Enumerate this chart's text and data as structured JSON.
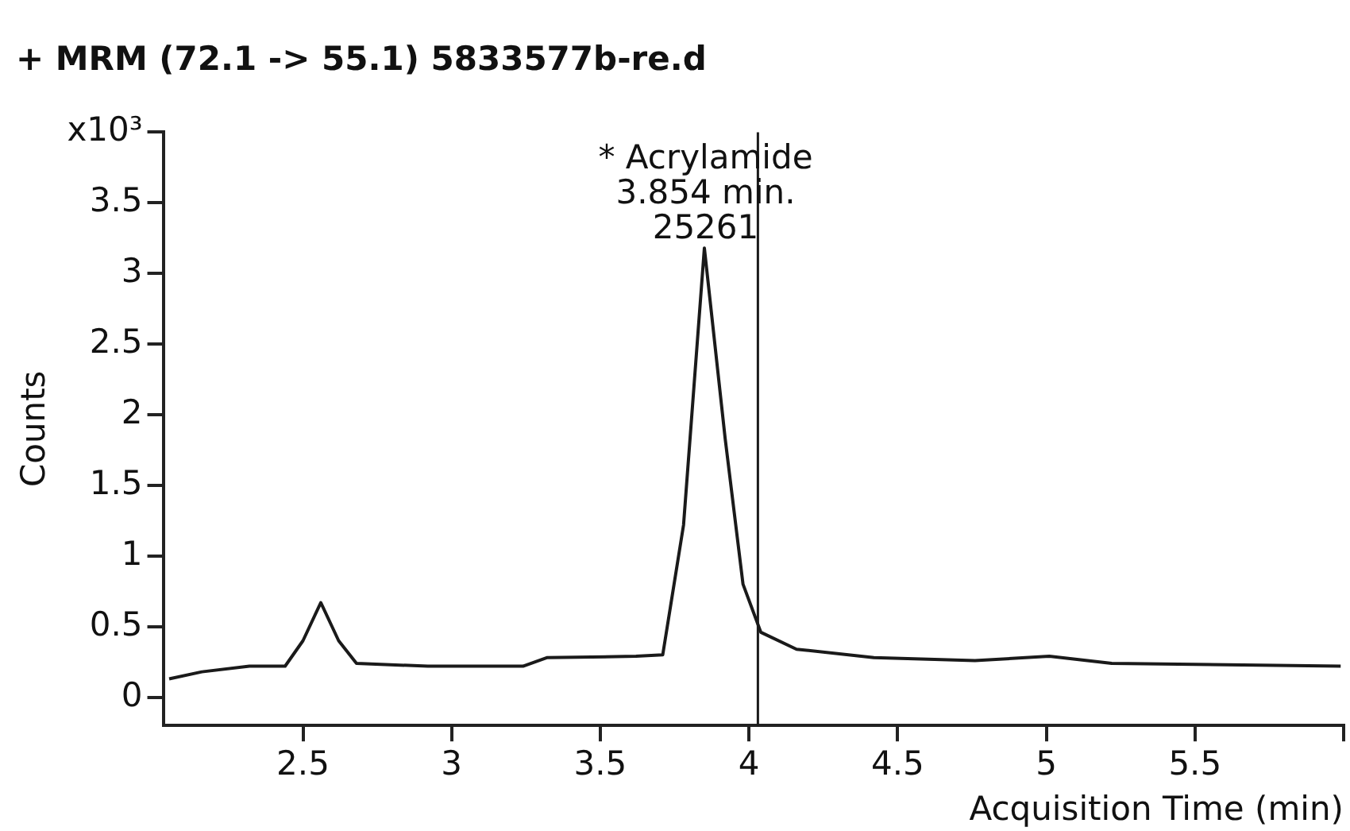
{
  "chart_data": {
    "type": "line",
    "title": "+ MRM (72.1 -> 55.1) 5833577b-re.d",
    "xlabel": "Acquisition Time (min)",
    "ylabel": "Counts",
    "x": [
      2.05,
      2.16,
      2.32,
      2.44,
      2.5,
      2.56,
      2.62,
      2.68,
      2.92,
      3.12,
      3.24,
      3.32,
      3.62,
      3.71,
      3.78,
      3.85,
      3.92,
      3.98,
      4.04,
      4.16,
      4.42,
      4.76,
      5.01,
      5.22,
      5.99
    ],
    "values": [
      0.13,
      0.18,
      0.22,
      0.22,
      0.4,
      0.67,
      0.4,
      0.24,
      0.22,
      0.22,
      0.22,
      0.28,
      0.29,
      0.3,
      1.22,
      3.18,
      1.83,
      0.8,
      0.46,
      0.34,
      0.28,
      0.26,
      0.29,
      0.24,
      0.22
    ],
    "color": "#1a1a1a",
    "marker": "none",
    "line_style": "solid",
    "grid": false,
    "legend": false,
    "xlim": [
      2.03,
      6
    ],
    "xticks": [
      2.5,
      3,
      3.5,
      4,
      4.5,
      5,
      5.5,
      {
        "value": 6,
        "label": null
      }
    ],
    "ylim": [
      -0.2,
      4
    ],
    "yticks": [
      0,
      0.5,
      1,
      1.5,
      2,
      2.5,
      3,
      3.5,
      {
        "value": 4,
        "label": "x10³"
      }
    ],
    "ref_lines": [
      {
        "axis": "x",
        "value": 4.03,
        "color": "#1a1a1a"
      }
    ],
    "annotations": [
      {
        "text": "* Acrylamide\n3.854 min.\n25261",
        "x": 3.854,
        "y": 3.18
      }
    ]
  }
}
